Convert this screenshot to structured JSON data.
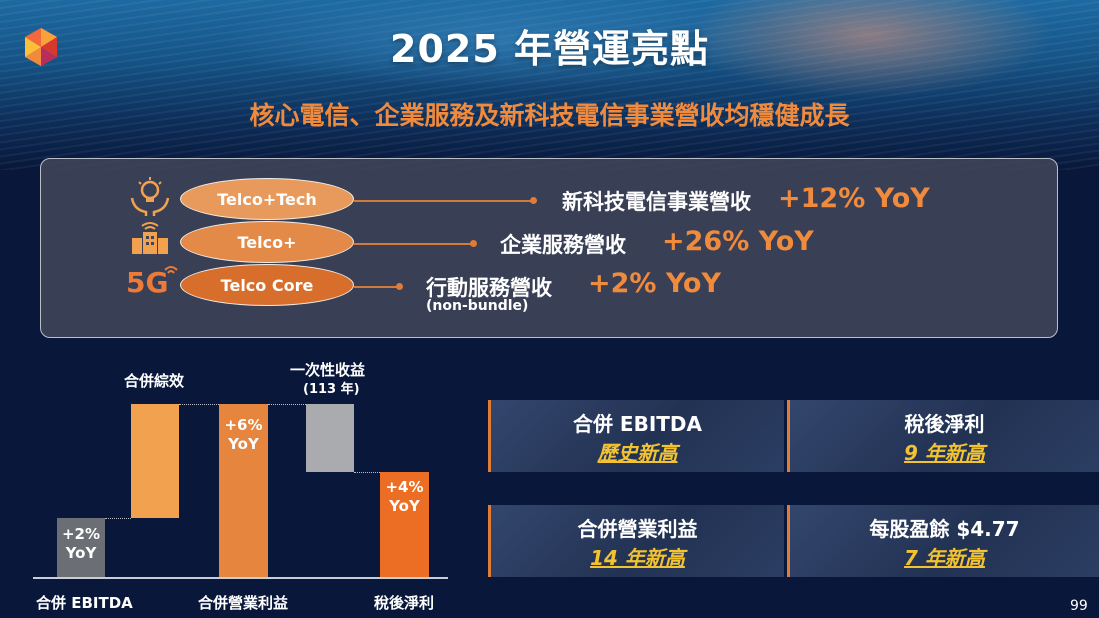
{
  "header": {
    "title": "2025 年營運亮點",
    "subtitle": "核心電信、企業服務及新科技電信事業營收均穩健成長"
  },
  "segments": [
    {
      "pill": "Telco+Tech",
      "label": "新科技電信事業營收",
      "yoy": "+12% YoY",
      "icon": "lightbulb-hands-icon",
      "pill_color": "#e89a5c"
    },
    {
      "pill": "Telco+",
      "label": "企業服務營收",
      "yoy": "+26% YoY",
      "icon": "building-wifi-icon",
      "pill_color": "#e48a48"
    },
    {
      "pill": "Telco Core",
      "label": "行動服務營收",
      "note": "(non-bundle)",
      "yoy": "+2% YoY",
      "icon": "5g-icon",
      "icon_text": "5G",
      "pill_color": "#d86e2c"
    }
  ],
  "waterfall": {
    "top_labels": {
      "consolidated": "合併綜效",
      "one_time": "一次性收益",
      "one_time_year": "(113 年)"
    },
    "bar_labels": {
      "ebitda": [
        "+2%",
        "YoY"
      ],
      "operating": [
        "+6%",
        "YoY"
      ],
      "net": [
        "+4%",
        "YoY"
      ]
    },
    "categories": [
      "合併 EBITDA",
      "合併營業利益",
      "稅後淨利"
    ],
    "colors": {
      "gray": "#6b6e74",
      "orange_light": "#f2a14e",
      "orange_mid": "#e5853e",
      "silver": "#a9abaf",
      "orange_deep": "#ec6e24"
    }
  },
  "highlights": [
    {
      "title": "合併 EBITDA",
      "sub": "歷史新高"
    },
    {
      "title": "稅後淨利",
      "sub": "9 年新高"
    },
    {
      "title": "合併營業利益",
      "sub": "14 年新高"
    },
    {
      "title": "每股盈餘 $4.77",
      "sub": "7 年新高"
    }
  ],
  "page_number": "99",
  "colors": {
    "accent": "#f08a3c",
    "highlight": "#f2c230",
    "background": "#08173a"
  }
}
